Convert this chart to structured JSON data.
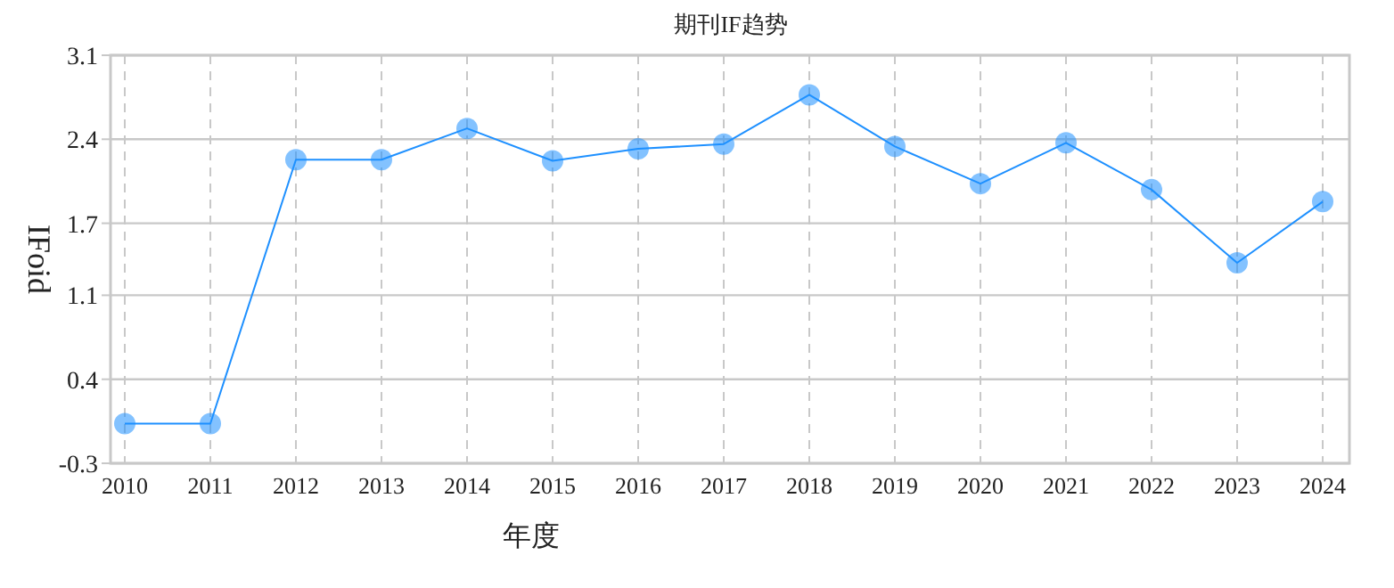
{
  "chart_data": {
    "type": "line",
    "title": "期刊IF趋势",
    "xlabel": "年度",
    "ylabel": "IFoid",
    "categories": [
      "2010",
      "2011",
      "2012",
      "2013",
      "2014",
      "2015",
      "2016",
      "2017",
      "2018",
      "2019",
      "2020",
      "2021",
      "2022",
      "2023",
      "2024"
    ],
    "series": [
      {
        "color": "#1e90ff",
        "values": [
          0.03,
          0.03,
          2.23,
          2.23,
          2.49,
          2.22,
          2.32,
          2.36,
          2.77,
          2.34,
          2.03,
          2.37,
          1.98,
          1.37,
          1.88
        ]
      }
    ],
    "ylim": [
      -0.3,
      3.1
    ],
    "yticks": [
      {
        "value": -0.3,
        "label": "-0.3"
      },
      0.4,
      1.1,
      1.7,
      2.4,
      3.1
    ],
    "grid": true,
    "marker": "circle",
    "line_style": "solid"
  }
}
